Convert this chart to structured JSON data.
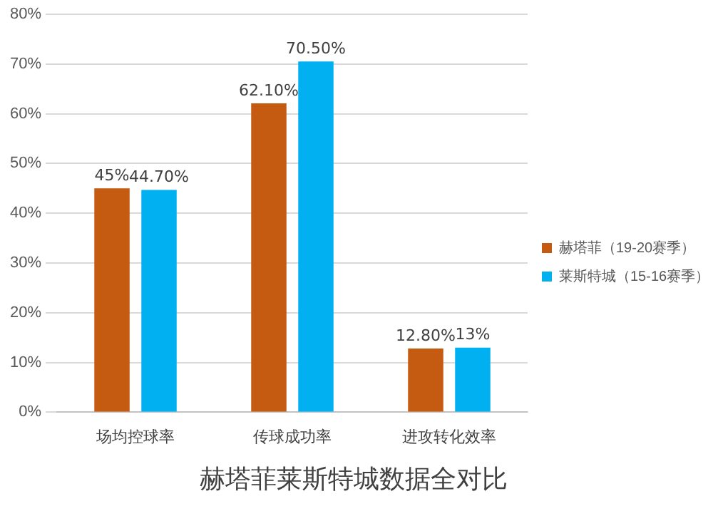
{
  "chart_data": {
    "type": "bar",
    "title": "赫塔菲莱斯特城数据全对比",
    "categories": [
      "场均控球率",
      "传球成功率",
      "进攻转化效率"
    ],
    "series": [
      {
        "name": "赫塔菲（19-20赛季）",
        "color": "#c55a11",
        "values": [
          45,
          62.1,
          12.8
        ],
        "value_labels": [
          "45%",
          "62.10%",
          "12.80%"
        ]
      },
      {
        "name": "莱斯特城（15-16赛季）",
        "color": "#00b0f0",
        "values": [
          44.7,
          70.5,
          13
        ],
        "value_labels": [
          "44.70%",
          "70.50%",
          "13%"
        ]
      }
    ],
    "ylim": [
      0,
      80
    ],
    "yticks": [
      {
        "value": 0,
        "label": "0%"
      },
      {
        "value": 10,
        "label": "10%"
      },
      {
        "value": 20,
        "label": "20%"
      },
      {
        "value": 30,
        "label": "30%"
      },
      {
        "value": 40,
        "label": "40%"
      },
      {
        "value": 50,
        "label": "50%"
      },
      {
        "value": 60,
        "label": "60%"
      },
      {
        "value": 70,
        "label": "70%"
      },
      {
        "value": 80,
        "label": "80%"
      }
    ],
    "grid": "y",
    "legend": "right"
  }
}
